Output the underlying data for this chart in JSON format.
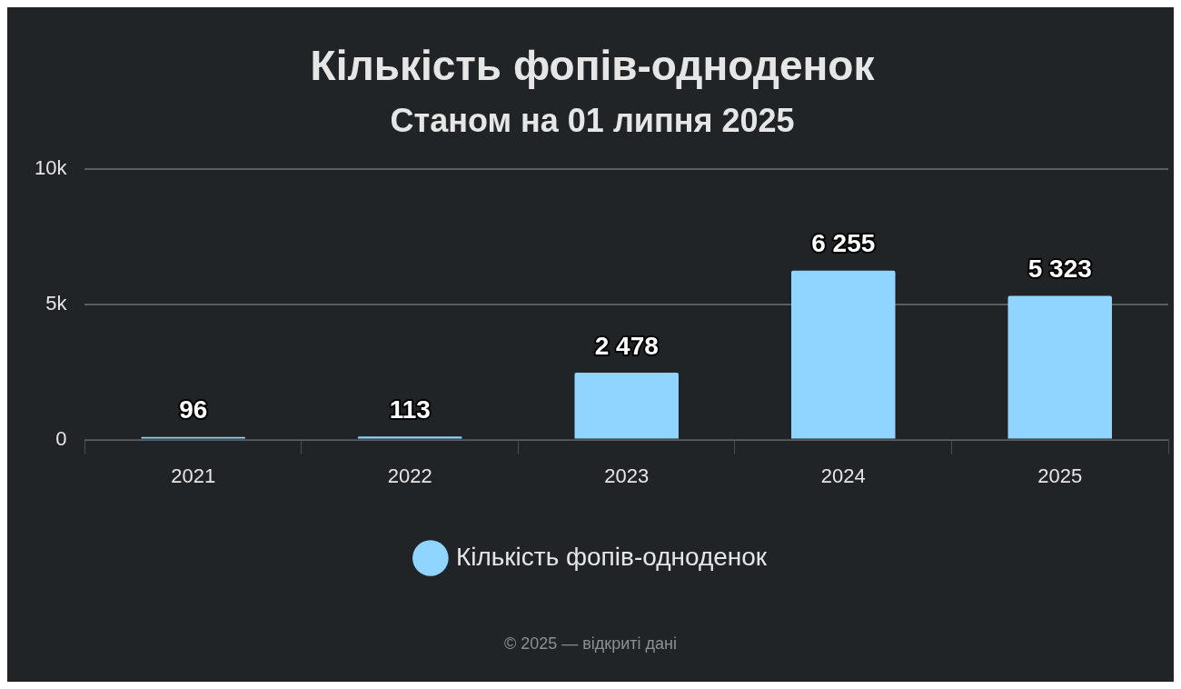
{
  "chart_data": {
    "type": "bar",
    "title": "Кількість фопів-одноденок",
    "subtitle": "Станом на 01 липня 2025",
    "categories": [
      "2021",
      "2022",
      "2023",
      "2024",
      "2025"
    ],
    "series": [
      {
        "name": "Кількість фопів-одноденок",
        "color": "#90d5ff",
        "values": [
          96,
          113,
          2478,
          6255,
          5323
        ]
      }
    ],
    "value_labels": [
      "96",
      "113",
      "2 478",
      "6 255",
      "5 323"
    ],
    "ylim": [
      0,
      10000
    ],
    "yticks": [
      {
        "value": 0,
        "label": "0"
      },
      {
        "value": 5000,
        "label": "5k"
      },
      {
        "value": 10000,
        "label": "10k"
      }
    ],
    "grid": "y",
    "legend": "bottom",
    "marker": "circle",
    "annotations": [
      "© 2025 — відкриті дані"
    ]
  }
}
